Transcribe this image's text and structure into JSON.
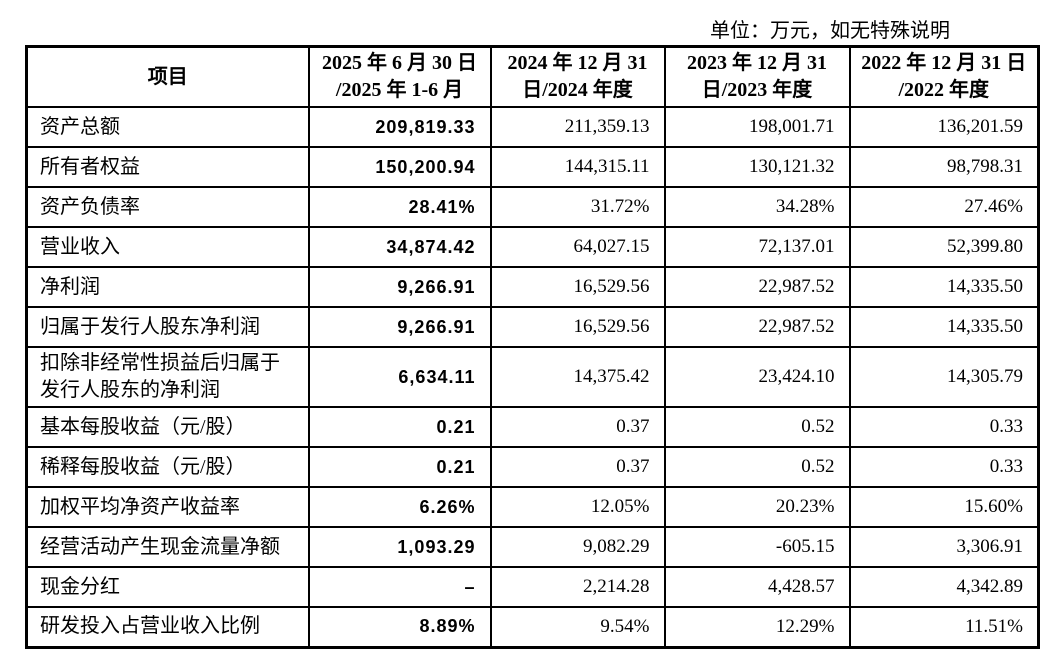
{
  "note": "单位：万元，如无特殊说明",
  "table": {
    "headers": [
      "项目",
      "2025 年 6 月 30 日\n/2025 年 1-6 月",
      "2024 年 12 月 31\n日/2024 年度",
      "2023 年 12 月 31\n日/2023 年度",
      "2022 年 12 月 31 日\n/2022 年度"
    ],
    "column_keys": [
      "2025h1",
      "2024",
      "2023",
      "2022"
    ],
    "rows": [
      {
        "label": "资产总额",
        "values": [
          "209,819.33",
          "211,359.13",
          "198,001.71",
          "136,201.59"
        ],
        "tall": false
      },
      {
        "label": "所有者权益",
        "values": [
          "150,200.94",
          "144,315.11",
          "130,121.32",
          "98,798.31"
        ],
        "tall": false
      },
      {
        "label": "资产负债率",
        "values": [
          "28.41%",
          "31.72%",
          "34.28%",
          "27.46%"
        ],
        "tall": false
      },
      {
        "label": "营业收入",
        "values": [
          "34,874.42",
          "64,027.15",
          "72,137.01",
          "52,399.80"
        ],
        "tall": false
      },
      {
        "label": "净利润",
        "values": [
          "9,266.91",
          "16,529.56",
          "22,987.52",
          "14,335.50"
        ],
        "tall": false
      },
      {
        "label": "归属于发行人股东净利润",
        "values": [
          "9,266.91",
          "16,529.56",
          "22,987.52",
          "14,335.50"
        ],
        "tall": false
      },
      {
        "label": "扣除非经常性损益后归属于\n发行人股东的净利润",
        "values": [
          "6,634.11",
          "14,375.42",
          "23,424.10",
          "14,305.79"
        ],
        "tall": true
      },
      {
        "label": "基本每股收益（元/股）",
        "values": [
          "0.21",
          "0.37",
          "0.52",
          "0.33"
        ],
        "tall": false
      },
      {
        "label": "稀释每股收益（元/股）",
        "values": [
          "0.21",
          "0.37",
          "0.52",
          "0.33"
        ],
        "tall": false
      },
      {
        "label": "加权平均净资产收益率",
        "values": [
          "6.26%",
          "12.05%",
          "20.23%",
          "15.60%"
        ],
        "tall": false
      },
      {
        "label": "经营活动产生现金流量净额",
        "values": [
          "1,093.29",
          "9,082.29",
          "-605.15",
          "3,306.91"
        ],
        "tall": false
      },
      {
        "label": "现金分红",
        "values": [
          "–",
          "2,214.28",
          "4,428.57",
          "4,342.89"
        ],
        "tall": false
      },
      {
        "label": "研发投入占营业收入比例",
        "values": [
          "8.89%",
          "9.54%",
          "12.29%",
          "11.51%"
        ],
        "tall": false
      }
    ]
  }
}
